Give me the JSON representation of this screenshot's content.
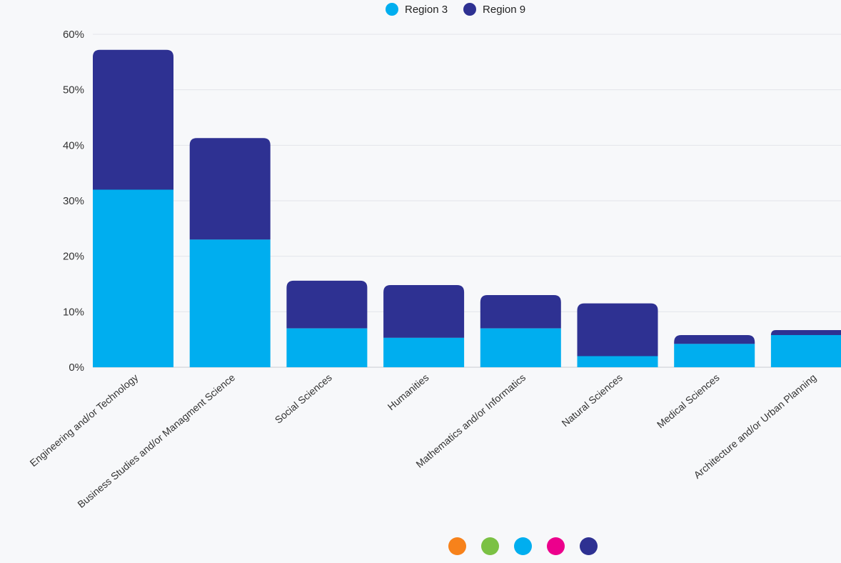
{
  "legend": [
    {
      "label": "Region 3",
      "color": "#00aeef"
    },
    {
      "label": "Region 9",
      "color": "#2e3192"
    }
  ],
  "pager": {
    "dots": [
      {
        "name": "orange",
        "color": "#f7821b"
      },
      {
        "name": "green",
        "color": "#7bc144"
      },
      {
        "name": "cyan",
        "color": "#00aeef"
      },
      {
        "name": "magenta",
        "color": "#ec008c"
      },
      {
        "name": "navy",
        "color": "#2e3192"
      }
    ]
  },
  "chart_data": {
    "type": "bar",
    "stacked": true,
    "categories": [
      "Engineering and/or Technology",
      "Business Studies and/or Managment Science",
      "Social Sciences",
      "Humanities",
      "Mathematics and/or Informatics",
      "Natural Sciences",
      "Medical Sciences",
      "Architecture and/or Urban Planning"
    ],
    "series": [
      {
        "name": "Region 3",
        "color": "#00aeef",
        "values": [
          32,
          23,
          7,
          5.3,
          7,
          2,
          4.2,
          5.8
        ]
      },
      {
        "name": "Region 9",
        "color": "#2e3192",
        "values": [
          25.2,
          18.3,
          8.6,
          9.5,
          6,
          9.5,
          1.6,
          0.9
        ]
      }
    ],
    "ylim": [
      0,
      60
    ],
    "yticks": [
      "0%",
      "10%",
      "20%",
      "30%",
      "40%",
      "50%",
      "60%"
    ],
    "grid": true,
    "legend_position": "top-center"
  }
}
